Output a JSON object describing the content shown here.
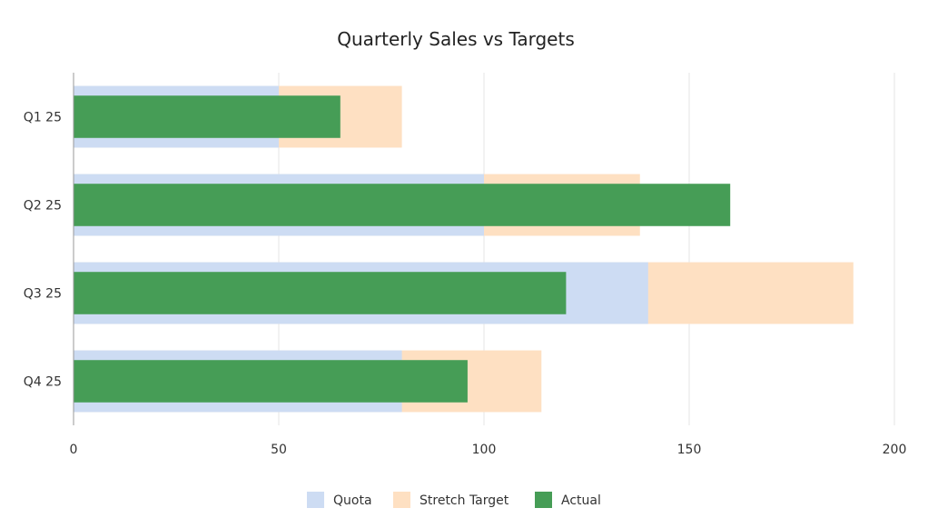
{
  "chart_data": {
    "type": "bar",
    "orientation": "horizontal",
    "title": "Quarterly Sales vs Targets",
    "xlabel": "",
    "ylabel": "",
    "categories": [
      "Q1 25",
      "Q2 25",
      "Q3 25",
      "Q4 25"
    ],
    "xlim": [
      0,
      200
    ],
    "x_ticks": [
      "0",
      "50",
      "100",
      "150",
      "200"
    ],
    "grid": "vertical",
    "legend_position": "bottom",
    "series": [
      {
        "name": "Quota",
        "values": [
          50,
          100,
          140,
          80
        ],
        "color": "#cddcf3"
      },
      {
        "name": "Stretch Target",
        "values": [
          80,
          138,
          190,
          114
        ],
        "color": "#fee0c2"
      },
      {
        "name": "Actual",
        "values": [
          65,
          160,
          120,
          96
        ],
        "color": "#469d56"
      }
    ]
  }
}
